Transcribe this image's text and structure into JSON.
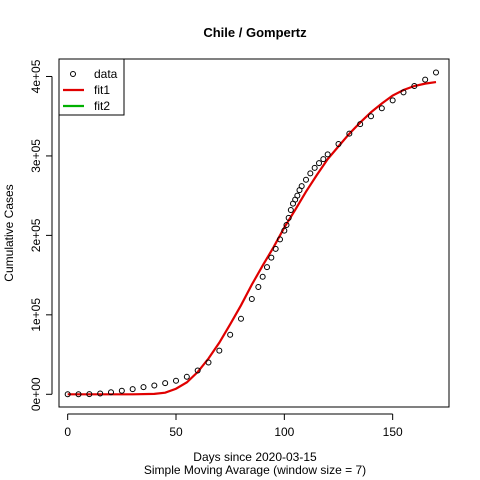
{
  "chart_data": {
    "type": "scatter",
    "title": "Chile / Gompertz",
    "xlabel": "Days since 2020-03-15",
    "subtitle": "Simple Moving Avarage (window size = 7)",
    "ylabel": "Cumulative Cases",
    "xlim": [
      -4,
      176
    ],
    "ylim": [
      -16000,
      422000
    ],
    "x_ticks": [
      0,
      50,
      100,
      150
    ],
    "x_tick_labels": [
      "0",
      "50",
      "100",
      "150"
    ],
    "y_ticks": [
      0,
      100000,
      200000,
      300000,
      400000
    ],
    "y_tick_labels": [
      "0e+00",
      "1e+05",
      "2e+05",
      "3e+05",
      "4e+05"
    ],
    "legend": {
      "position": "top-left",
      "entries": [
        {
          "label": "data",
          "symbol": "circle",
          "color": "#000000"
        },
        {
          "label": "fit1",
          "symbol": "line",
          "color": "#e00000"
        },
        {
          "label": "fit2",
          "symbol": "line",
          "color": "#00b000"
        }
      ]
    },
    "series": [
      {
        "name": "data",
        "kind": "points",
        "color": "#000000",
        "x": [
          0,
          5,
          10,
          15,
          20,
          25,
          30,
          35,
          40,
          45,
          50,
          55,
          60,
          65,
          70,
          75,
          80,
          85,
          88,
          90,
          92,
          94,
          96,
          98,
          100,
          101,
          102,
          103,
          104,
          105,
          106,
          107,
          108,
          110,
          112,
          114,
          116,
          118,
          120,
          125,
          130,
          135,
          140,
          145,
          150,
          155,
          160,
          165,
          170
        ],
        "y": [
          0,
          0,
          200,
          1000,
          2500,
          4500,
          6500,
          9000,
          11000,
          14000,
          17000,
          22000,
          30000,
          40000,
          55000,
          75000,
          95000,
          120000,
          135000,
          148000,
          160000,
          172000,
          183000,
          195000,
          206000,
          213000,
          222000,
          232000,
          240000,
          245000,
          250000,
          257000,
          262000,
          270000,
          278000,
          285000,
          291000,
          296000,
          302000,
          315000,
          328000,
          340000,
          350000,
          360000,
          370000,
          380000,
          388000,
          396000,
          405000
        ]
      },
      {
        "name": "fit1",
        "kind": "line",
        "color": "#e00000",
        "x": [
          0,
          10,
          20,
          30,
          40,
          45,
          50,
          55,
          60,
          65,
          70,
          75,
          80,
          85,
          90,
          95,
          100,
          105,
          110,
          115,
          120,
          125,
          130,
          135,
          140,
          145,
          150,
          155,
          160,
          165,
          170
        ],
        "y": [
          0,
          0,
          0,
          0,
          500,
          2000,
          7000,
          15000,
          28000,
          45000,
          65000,
          88000,
          112000,
          138000,
          162000,
          185000,
          210000,
          232000,
          255000,
          276000,
          296000,
          312000,
          328000,
          342000,
          355000,
          366000,
          376000,
          383000,
          388000,
          391000,
          393000
        ]
      },
      {
        "name": "fit2",
        "kind": "line",
        "color": "#00b000",
        "x": [],
        "y": []
      }
    ]
  }
}
